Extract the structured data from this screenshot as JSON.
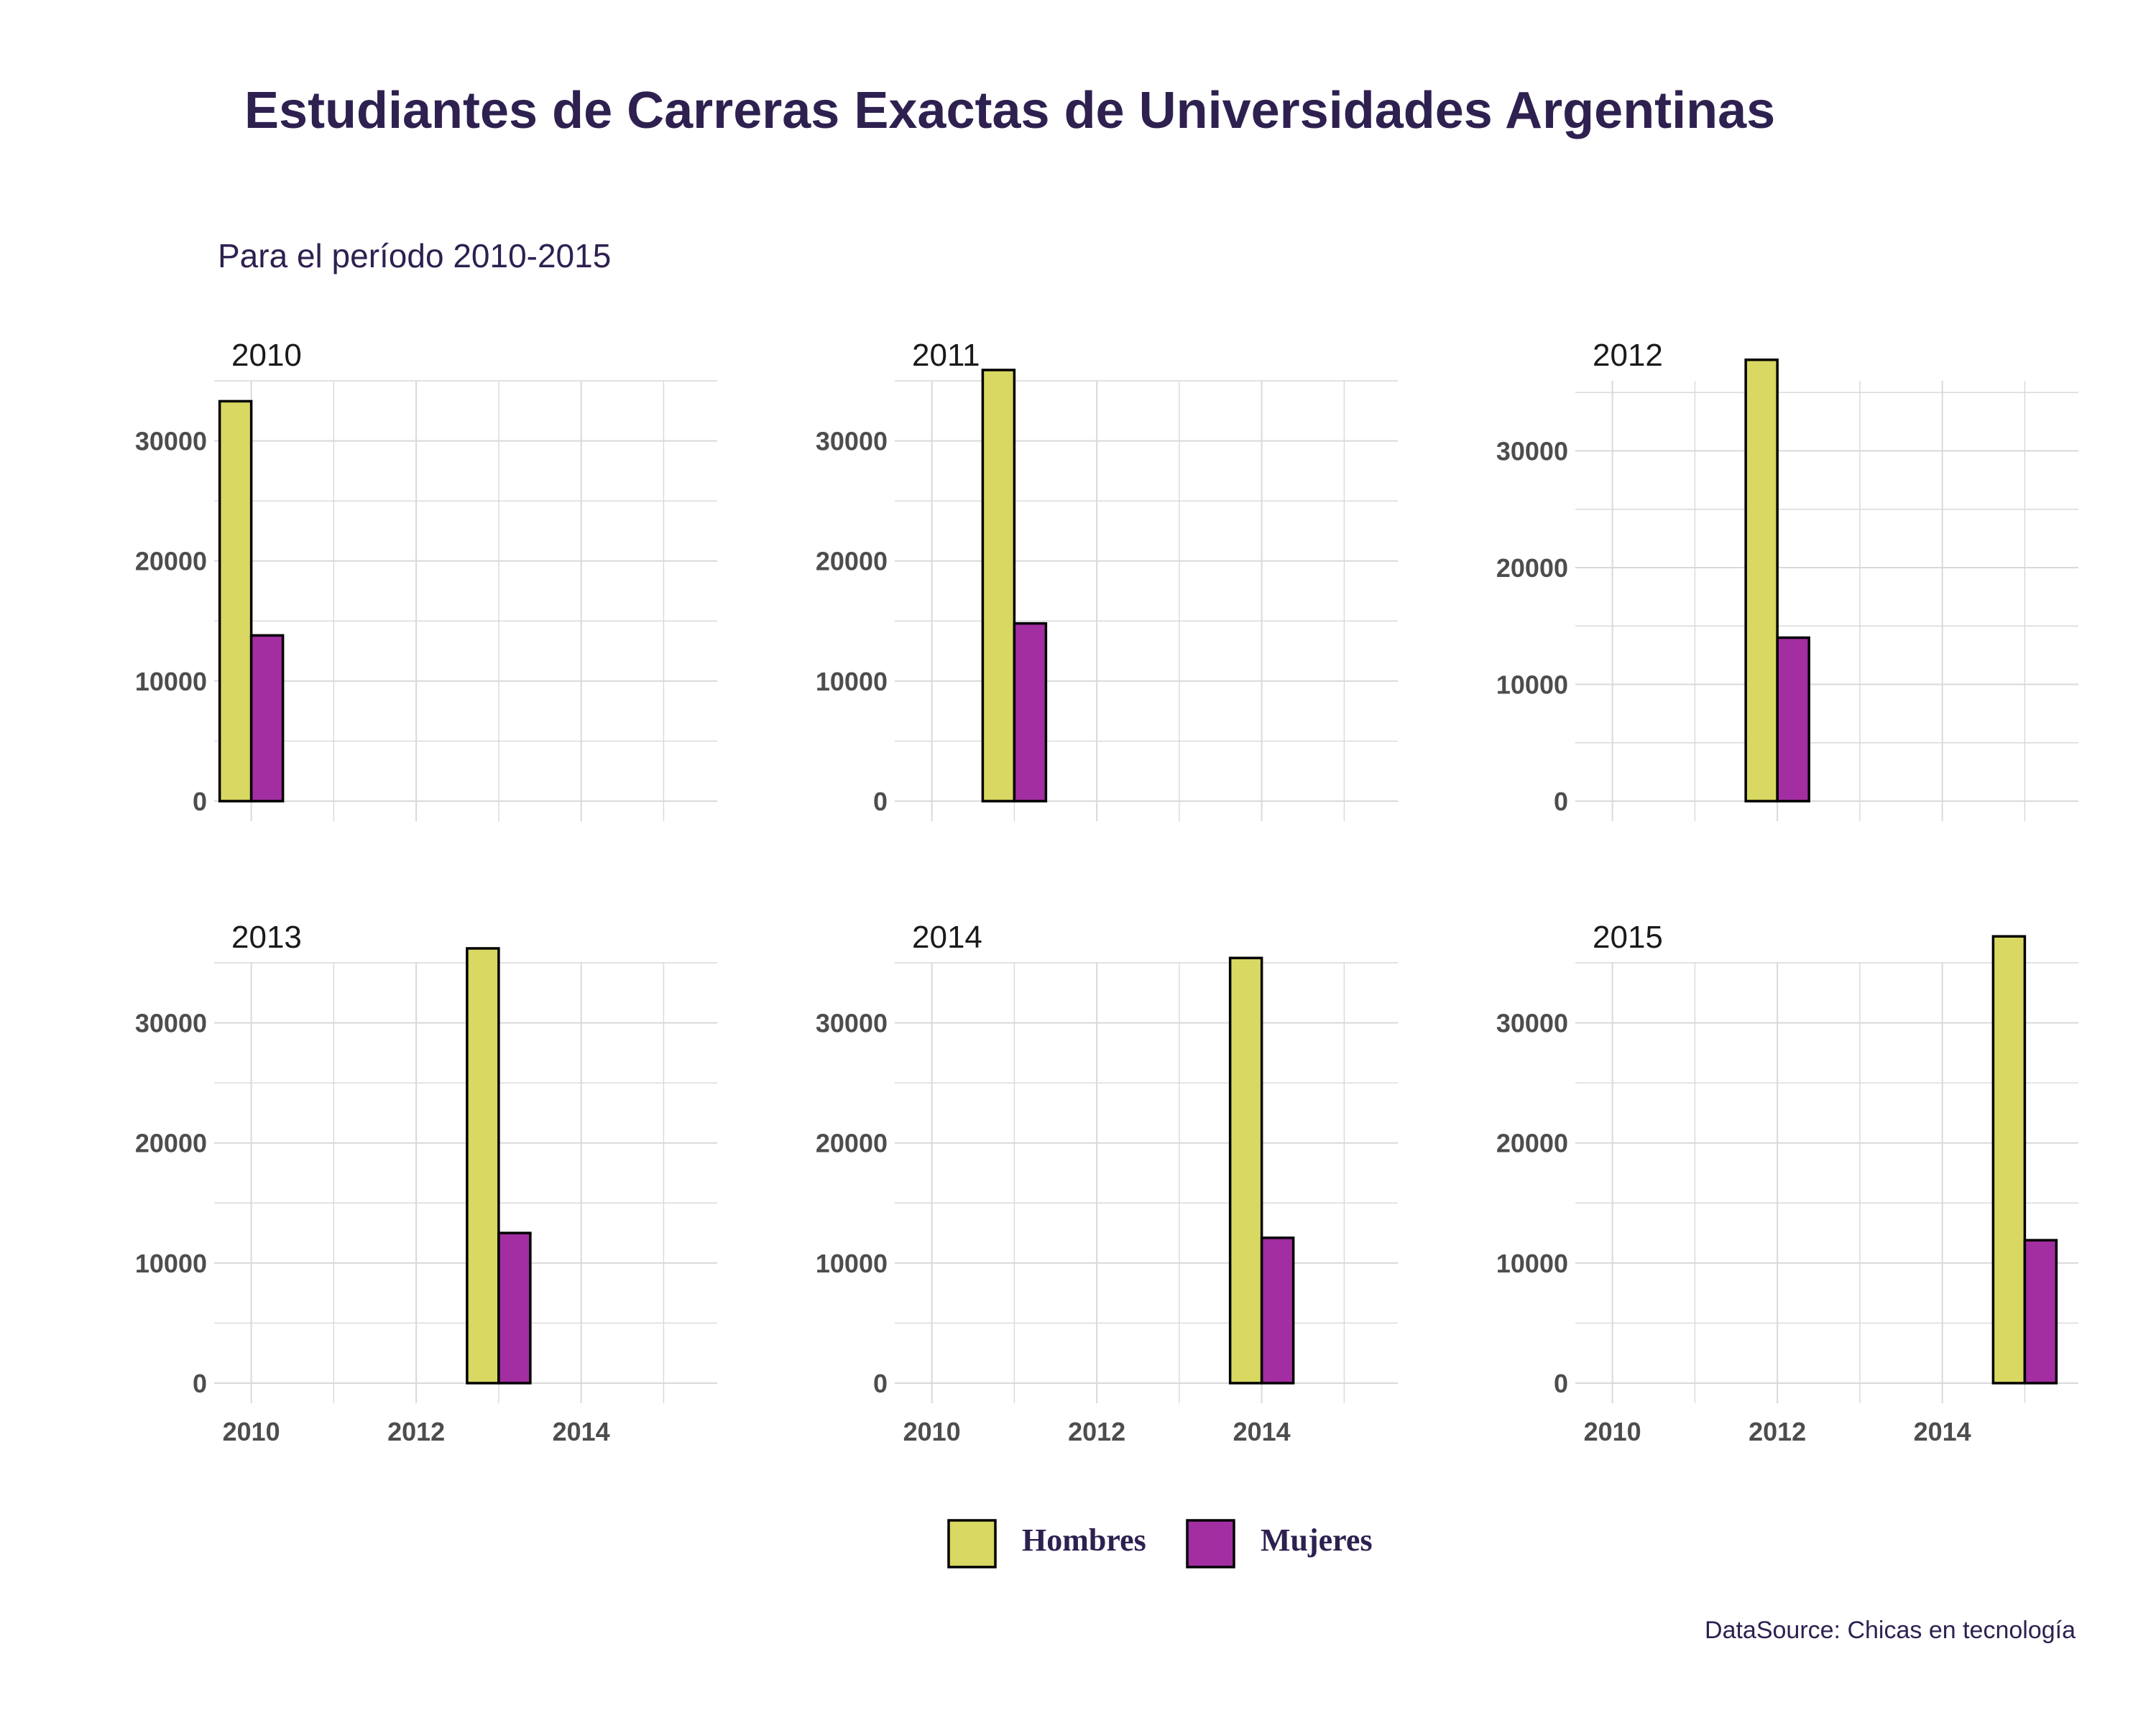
{
  "title": "Estudiantes de Carreras Exactas de Universidades Argentinas",
  "subtitle": "Para el período 2010-2015",
  "caption": "DataSource: Chicas en tecnología",
  "colors": {
    "title": "#2e2150",
    "hombres": "#d8d862",
    "mujeres": "#a22ea2",
    "bar_outline": "#000000",
    "grid": "#d9d9d9",
    "tick_label": "#4d4d4d",
    "strip": "#1a1a1a"
  },
  "chart_data": {
    "type": "bar",
    "facet_by": "year",
    "grid": true,
    "legend_position": "bottom",
    "xlim": [
      2009.55,
      2015.65
    ],
    "x_ticks": [
      2010,
      2012,
      2014
    ],
    "y_ticks": [
      0,
      10000,
      20000,
      30000
    ],
    "series": [
      {
        "name": "Hombres",
        "color": "#d8d862"
      },
      {
        "name": "Mujeres",
        "color": "#a22ea2"
      }
    ],
    "panels": [
      {
        "label": "2010",
        "x": 2010,
        "ylim": [
          0,
          35000
        ],
        "values": {
          "Hombres": 33300,
          "Mujeres": 13800
        }
      },
      {
        "label": "2011",
        "x": 2011,
        "ylim": [
          0,
          35000
        ],
        "values": {
          "Hombres": 35900,
          "Mujeres": 14800
        }
      },
      {
        "label": "2012",
        "x": 2012,
        "ylim": [
          0,
          36000
        ],
        "values": {
          "Hombres": 37800,
          "Mujeres": 14000
        }
      },
      {
        "label": "2013",
        "x": 2013,
        "ylim": [
          0,
          35000
        ],
        "values": {
          "Hombres": 36200,
          "Mujeres": 12500
        }
      },
      {
        "label": "2014",
        "x": 2014,
        "ylim": [
          0,
          35000
        ],
        "values": {
          "Hombres": 35400,
          "Mujeres": 12100
        }
      },
      {
        "label": "2015",
        "x": 2015,
        "ylim": [
          0,
          35000
        ],
        "values": {
          "Hombres": 37200,
          "Mujeres": 11900
        }
      }
    ]
  }
}
